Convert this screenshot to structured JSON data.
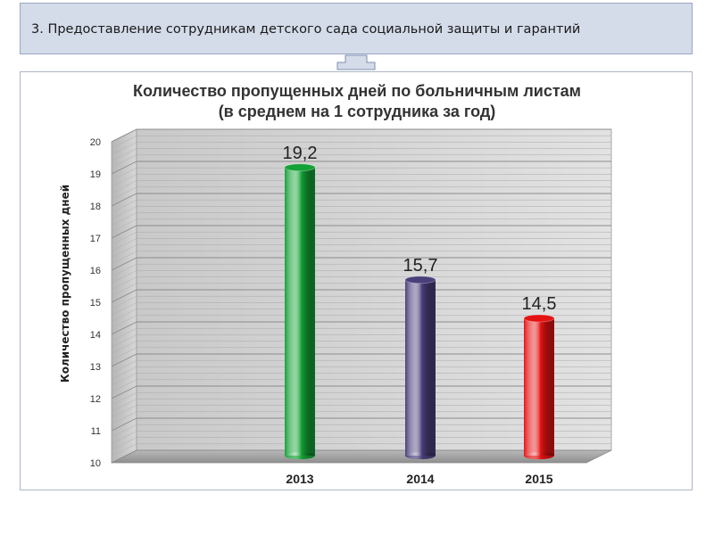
{
  "header": {
    "title": "3. Предоставление сотрудникам детского сада социальной защиты и гарантий"
  },
  "chart_data": {
    "type": "bar",
    "title_line1": "Количество пропущенных дней по больничным листам",
    "title_line2": "(в среднем на 1 сотрудника за год)",
    "ylabel": "Количество пропущенных дней",
    "xlabel": "",
    "categories": [
      "2013",
      "2014",
      "2015"
    ],
    "values": [
      19.2,
      15.7,
      14.5
    ],
    "value_labels": [
      "19,2",
      "15,7",
      "14,5"
    ],
    "colors": [
      "#14a136",
      "#4b3f7a",
      "#e41313"
    ],
    "yticks": [
      "10",
      "11",
      "12",
      "13",
      "14",
      "15",
      "16",
      "17",
      "18",
      "19",
      "20"
    ],
    "ylim": [
      10,
      20
    ],
    "grid": true
  }
}
